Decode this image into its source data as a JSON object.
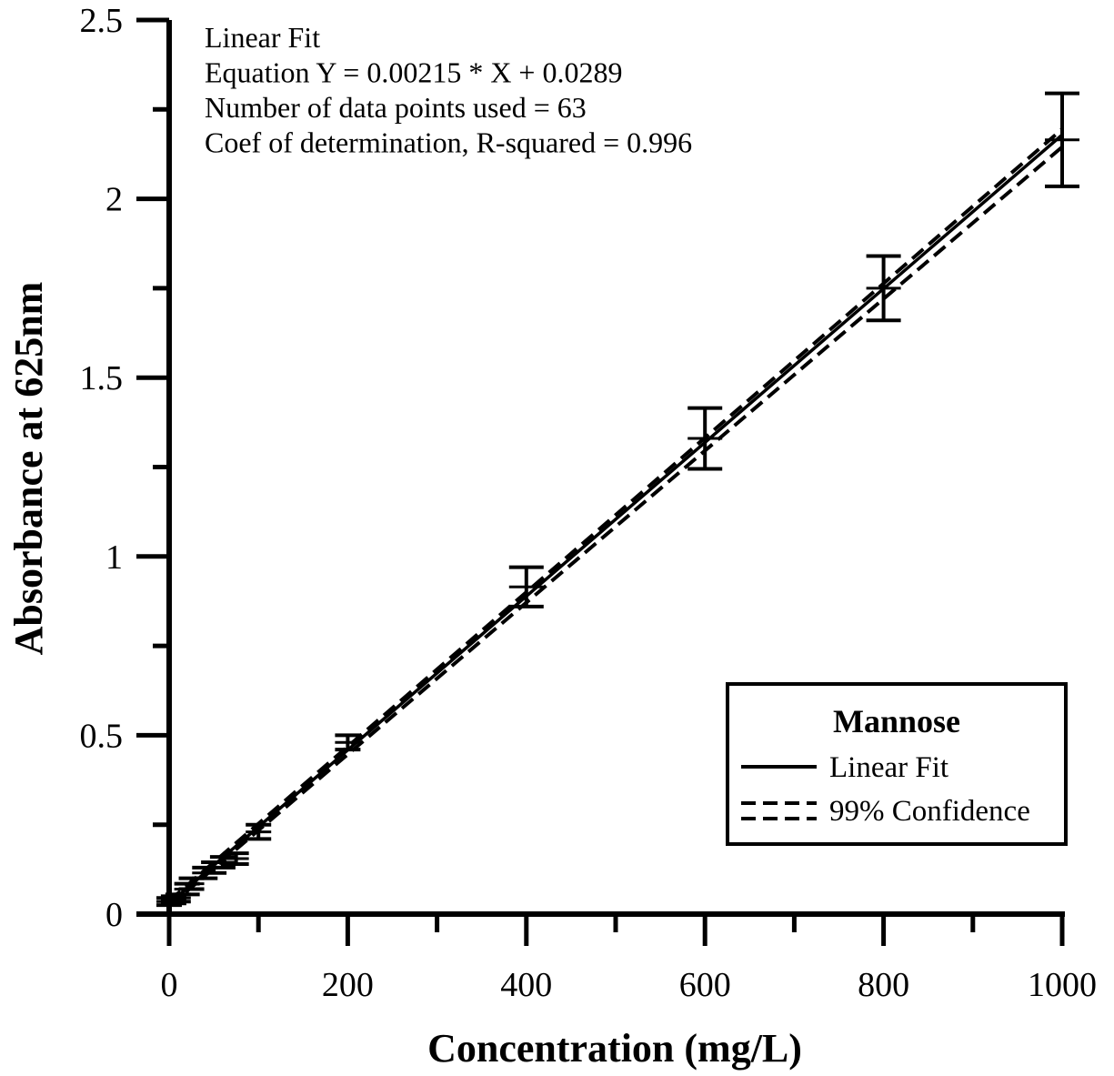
{
  "chart_data": {
    "type": "line",
    "title": "",
    "xlabel": "Concentration (mg/L)",
    "ylabel": "Absorbance at 625nm",
    "xlim": [
      0,
      1000
    ],
    "ylim": [
      0,
      2.5
    ],
    "x_ticks": [
      0,
      200,
      400,
      600,
      800,
      1000
    ],
    "x_tick_labels": [
      "0",
      "200",
      "400",
      "600",
      "800",
      "1000"
    ],
    "y_ticks": [
      0,
      0.5,
      1,
      1.5,
      2,
      2.5
    ],
    "y_tick_labels": [
      "0",
      "0.5",
      "1",
      "1.5",
      "2",
      "2.5"
    ],
    "grid": false,
    "annotations": [
      "Linear Fit",
      "Equation Y = 0.00215 * X + 0.0289",
      "Number of data points used = 63",
      "Coef of determination, R-squared = 0.996"
    ],
    "fit": {
      "slope": 0.00215,
      "intercept": 0.0289
    },
    "confidence_99": {
      "upper": [
        [
          0,
          0.037
        ],
        [
          1000,
          2.195
        ]
      ],
      "lower": [
        [
          0,
          0.022
        ],
        [
          1000,
          2.145
        ]
      ]
    },
    "series": [
      {
        "name": "Mannose",
        "style": "errorbar",
        "points": [
          {
            "x": 0,
            "y": 0.035,
            "err": 0.01
          },
          {
            "x": 5,
            "y": 0.04,
            "err": 0.01
          },
          {
            "x": 10,
            "y": 0.045,
            "err": 0.01
          },
          {
            "x": 20,
            "y": 0.07,
            "err": 0.015
          },
          {
            "x": 25,
            "y": 0.085,
            "err": 0.015
          },
          {
            "x": 40,
            "y": 0.115,
            "err": 0.015
          },
          {
            "x": 50,
            "y": 0.13,
            "err": 0.015
          },
          {
            "x": 60,
            "y": 0.145,
            "err": 0.015
          },
          {
            "x": 75,
            "y": 0.155,
            "err": 0.015
          },
          {
            "x": 100,
            "y": 0.23,
            "err": 0.02
          },
          {
            "x": 200,
            "y": 0.48,
            "err": 0.02
          },
          {
            "x": 400,
            "y": 0.915,
            "err": 0.055
          },
          {
            "x": 600,
            "y": 1.33,
            "err": 0.085
          },
          {
            "x": 800,
            "y": 1.75,
            "err": 0.09
          },
          {
            "x": 1000,
            "y": 2.165,
            "err": 0.13
          }
        ]
      }
    ],
    "legend": {
      "placement": "lower-right",
      "title": "Mannose",
      "entries": [
        {
          "label": "Linear Fit",
          "style": "solid"
        },
        {
          "label": "99% Confidence",
          "style": "dashed"
        }
      ]
    }
  }
}
